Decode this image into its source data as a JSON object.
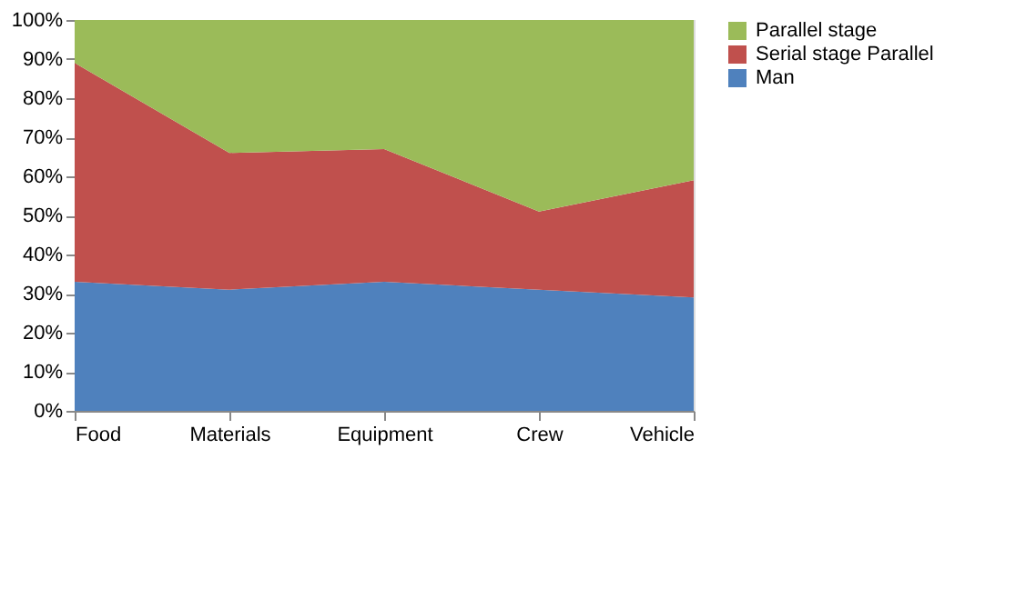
{
  "chart_data": {
    "type": "area",
    "stacked": true,
    "categories": [
      "Food",
      "Materials",
      "Equipment",
      "Crew",
      "Vehicle"
    ],
    "series": [
      {
        "name": "Man",
        "color": "#4f81bd",
        "values": [
          33,
          31,
          33,
          31,
          29
        ]
      },
      {
        "name": "Serial stage Parallel",
        "color": "#c0504d",
        "values": [
          56,
          35,
          34,
          20,
          30
        ]
      },
      {
        "name": "Parallel stage",
        "color": "#9bbb59",
        "values": [
          11,
          34,
          33,
          49,
          41
        ]
      }
    ],
    "ylim": [
      0,
      100
    ],
    "yticks": [
      {
        "value": 0,
        "label": "0%"
      },
      {
        "value": 10,
        "label": "10%"
      },
      {
        "value": 20,
        "label": "20%"
      },
      {
        "value": 30,
        "label": "30%"
      },
      {
        "value": 40,
        "label": "40%"
      },
      {
        "value": 50,
        "label": "50%"
      },
      {
        "value": 60,
        "label": "60%"
      },
      {
        "value": 70,
        "label": "70%"
      },
      {
        "value": 80,
        "label": "80%"
      },
      {
        "value": 90,
        "label": "90%"
      },
      {
        "value": 100,
        "label": "100%"
      }
    ],
    "grid": false,
    "legend": "right"
  }
}
